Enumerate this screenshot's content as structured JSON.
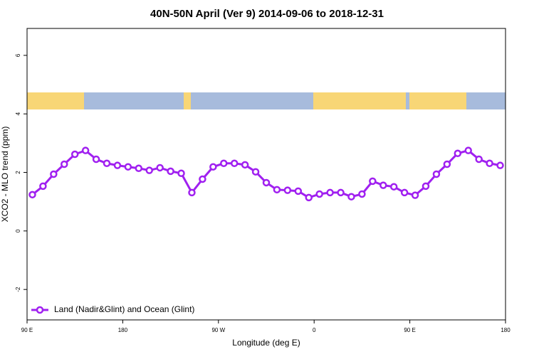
{
  "chart_data": {
    "type": "line",
    "title": "40N-50N April (Ver 9)   2014-09-06 to 2018-12-31",
    "x_label": "Longitude (deg E)",
    "y_label": "XCO2 - MLO trend (ppm)",
    "x": [
      95,
      105,
      115,
      125,
      135,
      145,
      155,
      165,
      175,
      185,
      195,
      205,
      215,
      225,
      235,
      245,
      255,
      265,
      275,
      285,
      295,
      305,
      315,
      325,
      335,
      345,
      355,
      365,
      375,
      385,
      395,
      405,
      415,
      425,
      435,
      445,
      455,
      465,
      475,
      485,
      495,
      505,
      515,
      525,
      535
    ],
    "series": [
      {
        "name": "Land (Nadir&Glint) and Ocean (Glint)",
        "color": "#a020f0",
        "values": [
          1.24,
          1.53,
          1.94,
          2.28,
          2.62,
          2.75,
          2.45,
          2.31,
          2.24,
          2.19,
          2.14,
          2.07,
          2.16,
          2.04,
          1.97,
          1.31,
          1.77,
          2.19,
          2.31,
          2.31,
          2.26,
          2.02,
          1.65,
          1.41,
          1.39,
          1.36,
          1.14,
          1.26,
          1.31,
          1.31,
          1.17,
          1.26,
          1.7,
          1.56,
          1.51,
          1.31,
          1.22,
          1.53,
          1.94,
          2.28,
          2.65,
          2.75,
          2.45,
          2.31,
          2.24
        ]
      }
    ],
    "xlim": [
      90,
      540
    ],
    "xticks": [
      {
        "value": 90,
        "label": "90 E"
      },
      180,
      {
        "value": 270,
        "label": "90 W"
      },
      {
        "value": 360,
        "label": "0"
      },
      {
        "value": 450,
        "label": "90 E"
      },
      {
        "value": 540,
        "label": "180"
      }
    ],
    "ylim": [
      -3.04,
      6.92
    ],
    "yticks": [
      -2,
      0,
      2,
      4,
      6
    ],
    "legend": "bottom-left"
  }
}
